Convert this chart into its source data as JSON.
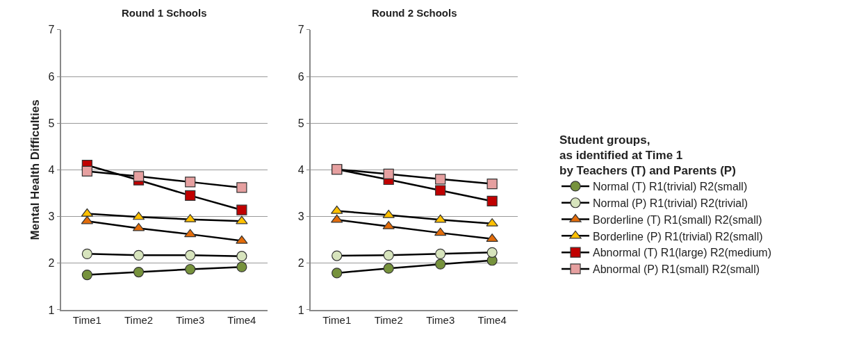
{
  "chart_data": [
    {
      "type": "line",
      "title": "Round 1 Schools",
      "ylabel": "Mental Health Difficulties",
      "categories": [
        "Time1",
        "Time2",
        "Time3",
        "Time4"
      ],
      "ylim": [
        1,
        7
      ],
      "yticks": [
        1,
        2,
        3,
        4,
        5,
        6,
        7
      ],
      "grid": "y",
      "legend": false,
      "series": [
        {
          "color": "#76923c",
          "marker": "circle",
          "values": [
            1.75,
            1.81,
            1.87,
            1.92
          ]
        },
        {
          "color": "#d7e4bd",
          "marker": "circle",
          "values": [
            2.2,
            2.17,
            2.17,
            2.15
          ]
        },
        {
          "color": "#e36c0a",
          "marker": "triangle",
          "values": [
            2.9,
            2.75,
            2.62,
            2.48
          ]
        },
        {
          "color": "#ffc000",
          "marker": "triangle",
          "values": [
            3.06,
            2.99,
            2.94,
            2.9
          ]
        },
        {
          "color": "#c00000",
          "marker": "square",
          "values": [
            4.1,
            3.78,
            3.45,
            3.14
          ]
        },
        {
          "color": "#e6a0a0",
          "marker": "square",
          "values": [
            3.97,
            3.86,
            3.74,
            3.62
          ]
        }
      ]
    },
    {
      "type": "line",
      "title": "Round 2 Schools",
      "legend_title": "Student groups,\nas identified at Time 1\nby Teachers (T) and Parents (P)",
      "categories": [
        "Time1",
        "Time2",
        "Time3",
        "Time4"
      ],
      "ylim": [
        1,
        7
      ],
      "yticks": [
        1,
        2,
        3,
        4,
        5,
        6,
        7
      ],
      "grid": "y",
      "legend": "right",
      "series": [
        {
          "name": "Normal (T) R1(trivial) R2(small)",
          "color": "#76923c",
          "marker": "circle",
          "values": [
            1.79,
            1.89,
            1.98,
            2.06
          ]
        },
        {
          "name": "Normal (P) R1(trivial) R2(trivial)",
          "color": "#d7e4bd",
          "marker": "circle",
          "values": [
            2.16,
            2.17,
            2.2,
            2.23
          ]
        },
        {
          "name": "Borderline (T) R1(small) R2(small)",
          "color": "#e36c0a",
          "marker": "triangle",
          "values": [
            2.93,
            2.79,
            2.65,
            2.52
          ]
        },
        {
          "name": "Borderline (P) R1(trivial) R2(small)",
          "color": "#ffc000",
          "marker": "triangle",
          "values": [
            3.12,
            3.03,
            2.93,
            2.85
          ]
        },
        {
          "name": "Abnormal (T) R1(large) R2(medium)",
          "color": "#c00000",
          "marker": "square",
          "values": [
            4.01,
            3.79,
            3.56,
            3.33
          ]
        },
        {
          "name": "Abnormal (P) R1(small) R2(small)",
          "color": "#e6a0a0",
          "marker": "square",
          "values": [
            4.01,
            3.91,
            3.8,
            3.7
          ]
        }
      ]
    }
  ]
}
